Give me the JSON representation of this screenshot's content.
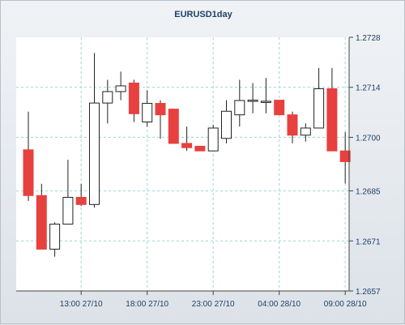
{
  "chart_data": {
    "type": "candlestick",
    "title": "EURUSD1day",
    "ylim": [
      1.2657,
      1.2728
    ],
    "yticks": [
      "1.2728",
      "1.2714",
      "1.2700",
      "1.2685",
      "1.2671",
      "1.2657"
    ],
    "xticks": [
      {
        "label": "13:00 27/10",
        "index": 4
      },
      {
        "label": "18:00 27/10",
        "index": 9
      },
      {
        "label": "23:00 27/10",
        "index": 14
      },
      {
        "label": "04:00 28/10",
        "index": 19
      },
      {
        "label": "09:00 28/10",
        "index": 24
      }
    ],
    "grid": true,
    "colors": {
      "up": "#ffffff",
      "down": "#e8403f",
      "outline": "#222222",
      "grid": "#9fd4d4"
    },
    "candles": [
      {
        "o": 1.26965,
        "h": 1.27072,
        "l": 1.26822,
        "c": 1.26837
      },
      {
        "o": 1.26837,
        "h": 1.2687,
        "l": 1.26687,
        "c": 1.26687
      },
      {
        "o": 1.26687,
        "h": 1.26762,
        "l": 1.26666,
        "c": 1.26757
      },
      {
        "o": 1.26757,
        "h": 1.26937,
        "l": 1.26757,
        "c": 1.26832
      },
      {
        "o": 1.26832,
        "h": 1.2687,
        "l": 1.26808,
        "c": 1.26812
      },
      {
        "o": 1.26812,
        "h": 1.27236,
        "l": 1.26803,
        "c": 1.27096
      },
      {
        "o": 1.27096,
        "h": 1.27161,
        "l": 1.27039,
        "c": 1.27128
      },
      {
        "o": 1.27128,
        "h": 1.27184,
        "l": 1.27104,
        "c": 1.27144
      },
      {
        "o": 1.27152,
        "h": 1.27161,
        "l": 1.27043,
        "c": 1.27066
      },
      {
        "o": 1.27043,
        "h": 1.27132,
        "l": 1.2703,
        "c": 1.27095
      },
      {
        "o": 1.27095,
        "h": 1.27104,
        "l": 1.26996,
        "c": 1.27063
      },
      {
        "o": 1.27079,
        "h": 1.27079,
        "l": 1.26983,
        "c": 1.26983
      },
      {
        "o": 1.26983,
        "h": 1.2703,
        "l": 1.26962,
        "c": 1.26971
      },
      {
        "o": 1.26975,
        "h": 1.26975,
        "l": 1.26962,
        "c": 1.26962
      },
      {
        "o": 1.26962,
        "h": 1.27035,
        "l": 1.26962,
        "c": 1.27026
      },
      {
        "o": 1.26997,
        "h": 1.27104,
        "l": 1.26983,
        "c": 1.27073
      },
      {
        "o": 1.27063,
        "h": 1.27161,
        "l": 1.2703,
        "c": 1.27103
      },
      {
        "o": 1.27101,
        "h": 1.27152,
        "l": 1.27067,
        "c": 1.27104
      },
      {
        "o": 1.27101,
        "h": 1.27166,
        "l": 1.27067,
        "c": 1.27101
      },
      {
        "o": 1.27104,
        "h": 1.27104,
        "l": 1.27063,
        "c": 1.27063
      },
      {
        "o": 1.27063,
        "h": 1.27072,
        "l": 1.26983,
        "c": 1.27006
      },
      {
        "o": 1.27006,
        "h": 1.27039,
        "l": 1.26988,
        "c": 1.27026
      },
      {
        "o": 1.27026,
        "h": 1.27194,
        "l": 1.27026,
        "c": 1.27136
      },
      {
        "o": 1.27136,
        "h": 1.27194,
        "l": 1.26962,
        "c": 1.26962
      },
      {
        "o": 1.26962,
        "h": 1.27015,
        "l": 1.26871,
        "c": 1.26932
      }
    ]
  }
}
